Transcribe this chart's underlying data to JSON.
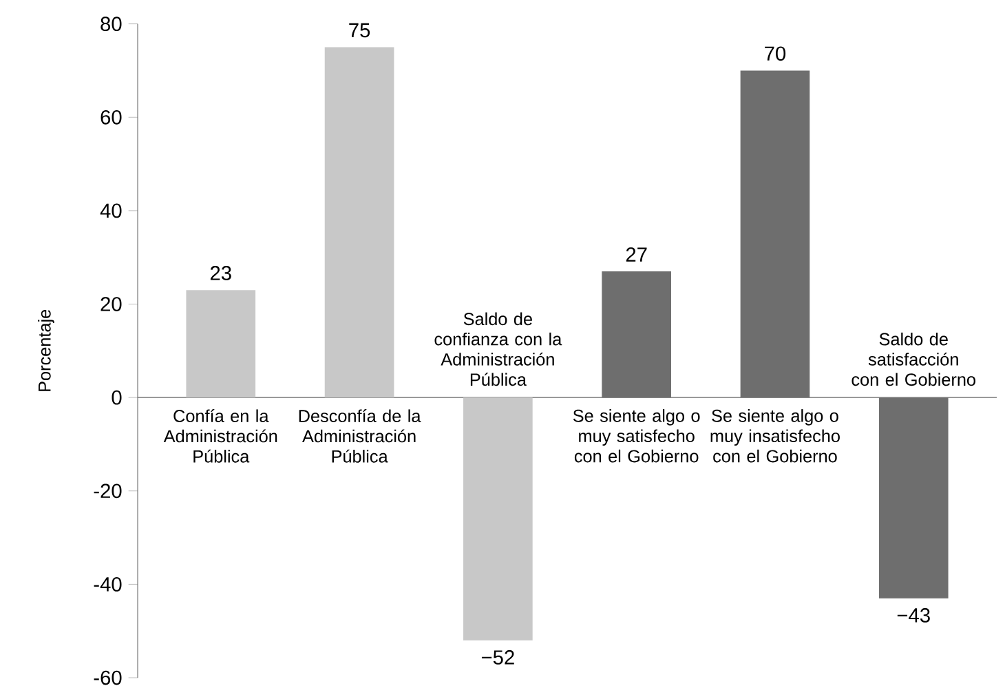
{
  "chart_data": {
    "type": "bar",
    "ylabel": "Porcentaje",
    "categories": [
      "Confía en la Administración Pública",
      "Desconfía de la Administración Pública",
      "Saldo de confianza con la Administración Pública",
      "Se siente algo o muy satisfecho con el Gobierno",
      "Se siente algo o muy insatisfecho con el Gobierno",
      "Saldo de satisfacción con el Gobierno"
    ],
    "values": [
      23,
      75,
      -52,
      27,
      70,
      -43
    ],
    "value_labels": [
      "23",
      "75",
      "−52",
      "27",
      "70",
      "−43"
    ],
    "colors": [
      "#c8c8c8",
      "#c8c8c8",
      "#c8c8c8",
      "#6e6e6e",
      "#6e6e6e",
      "#6e6e6e"
    ],
    "ylim": [
      -60,
      80
    ],
    "yticks": [
      -60,
      -40,
      -20,
      0,
      20,
      40,
      60,
      80
    ]
  }
}
